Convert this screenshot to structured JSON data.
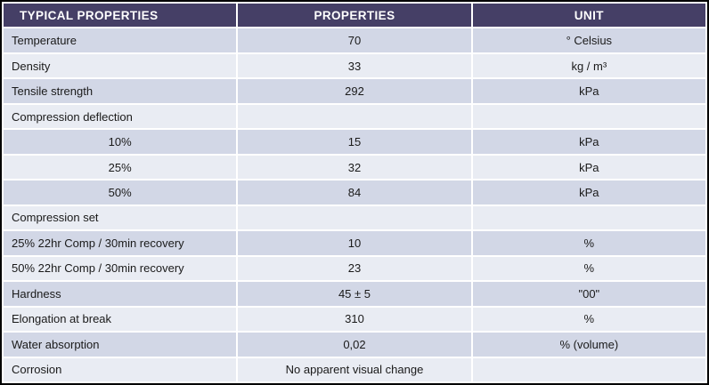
{
  "table": {
    "headers": [
      {
        "label": "TYPICAL PROPERTIES"
      },
      {
        "label": "PROPERTIES"
      },
      {
        "label": "UNIT"
      }
    ],
    "rows": [
      {
        "property": "Temperature",
        "value": "70",
        "unit": "° Celsius"
      },
      {
        "property": "Density",
        "value": "33",
        "unit": "kg / m³"
      },
      {
        "property": "Tensile strength",
        "value": "292",
        "unit": "kPa"
      },
      {
        "property": "Compression deflection",
        "value": "",
        "unit": ""
      },
      {
        "property": "10%",
        "value": "15",
        "unit": "kPa"
      },
      {
        "property": "25%",
        "value": "32",
        "unit": "kPa"
      },
      {
        "property": "50%",
        "value": "84",
        "unit": "kPa"
      },
      {
        "property": "Compression set",
        "value": "",
        "unit": ""
      },
      {
        "property": "25% 22hr Comp / 30min recovery",
        "value": "10",
        "unit": "%"
      },
      {
        "property": "50% 22hr Comp / 30min recovery",
        "value": "23",
        "unit": "%"
      },
      {
        "property": "Hardness",
        "value": "45 ± 5",
        "unit": "\"00\""
      },
      {
        "property": "Elongation at break",
        "value": "310",
        "unit": "%"
      },
      {
        "property": "Water absorption",
        "value": "0,02",
        "unit": "% (volume)"
      },
      {
        "property": "Corrosion",
        "value": "No apparent visual change",
        "unit": ""
      }
    ]
  },
  "colors": {
    "header_bg": "#453F66",
    "header_text": "#FFFFFF",
    "row_dark": "#D2D7E6",
    "row_light": "#E9ECF3",
    "text": "#1A1A1A",
    "outer_border": "#000000"
  }
}
